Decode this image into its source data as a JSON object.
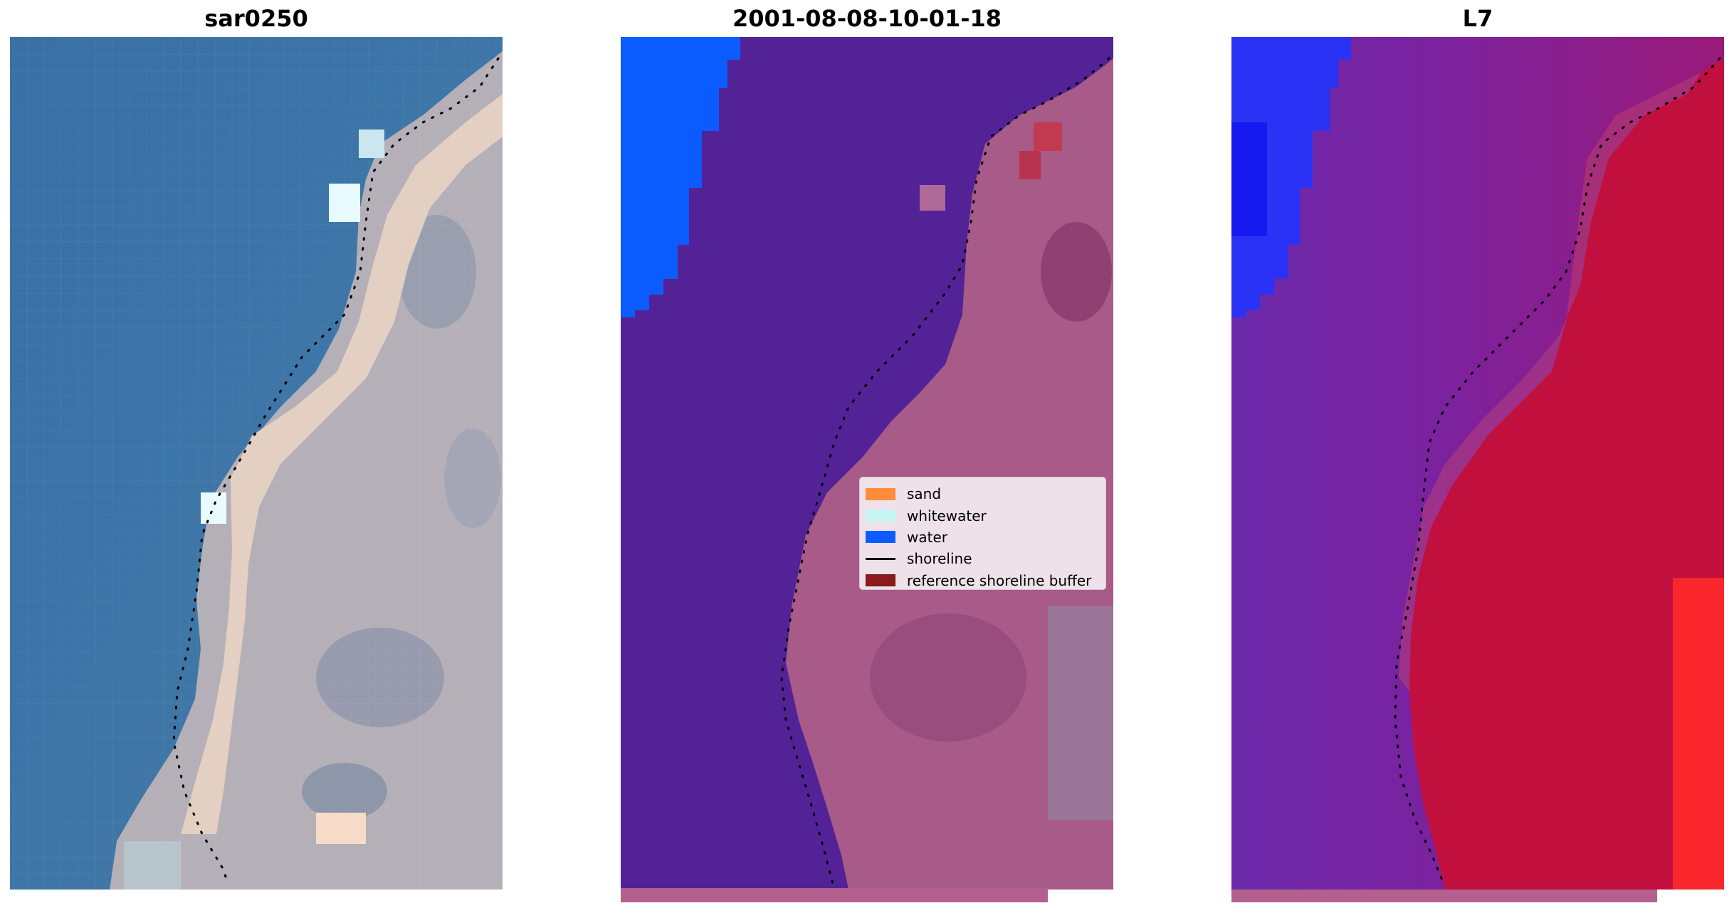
{
  "panels": [
    {
      "title": "sar0250",
      "image": "rgb-satellite-image",
      "shoreline": "dotted-black-line"
    },
    {
      "title": "2001-08-08-10-01-18",
      "image": "classified-image",
      "shoreline": "dotted-black-line"
    },
    {
      "title": "L7",
      "image": "index-image",
      "shoreline": "dotted-black-line"
    }
  ],
  "legend": {
    "placement": "center-right of middle panel",
    "items": [
      {
        "label": "sand",
        "type": "patch",
        "color": "#ff8c3a"
      },
      {
        "label": "whitewater",
        "type": "patch",
        "color": "#c6f7f5"
      },
      {
        "label": "water",
        "type": "patch",
        "color": "#0b5cff"
      },
      {
        "label": "shoreline",
        "type": "line",
        "color": "#000000"
      },
      {
        "label": "reference shoreline buffer",
        "type": "patch",
        "color": "#8b1a1a"
      }
    ]
  },
  "colors": {
    "sea_rgb": "#3f78a8",
    "land_rgb": "#b8b3b8",
    "sand_rgb": "#e8d3c0",
    "class_background": "#522296",
    "class_land": "#a85a88",
    "class_water": "#0b5cff",
    "index_low": "#7a24a8",
    "index_high": "#c2103e",
    "index_water": "#2a33f5",
    "index_bright": "#ff1a1a"
  }
}
